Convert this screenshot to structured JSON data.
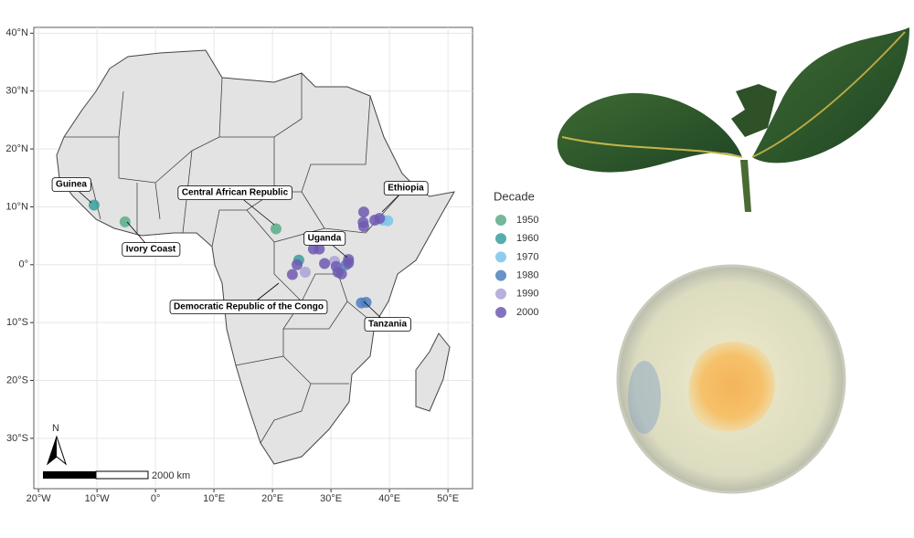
{
  "chart_data": {
    "type": "scatter",
    "legend_title": "Decade",
    "xlim": [
      -20.8,
      54.2
    ],
    "ylim": [
      -38.7,
      41
    ],
    "xticks": [
      {
        "value": -20,
        "label": "20°W"
      },
      {
        "value": -10,
        "label": "10°W"
      },
      {
        "value": 0,
        "label": "0°"
      },
      {
        "value": 10,
        "label": "10°E"
      },
      {
        "value": 20,
        "label": "20°E"
      },
      {
        "value": 30,
        "label": "30°E"
      },
      {
        "value": 40,
        "label": "40°E"
      },
      {
        "value": 50,
        "label": "50°E"
      }
    ],
    "yticks": [
      {
        "value": 40,
        "label": "40°N"
      },
      {
        "value": 30,
        "label": "30°N"
      },
      {
        "value": 20,
        "label": "20°N"
      },
      {
        "value": 10,
        "label": "10°N"
      },
      {
        "value": 0,
        "label": "0°"
      },
      {
        "value": -10,
        "label": "10°S"
      },
      {
        "value": -20,
        "label": "20°S"
      },
      {
        "value": -30,
        "label": "30°S"
      }
    ],
    "grid": true,
    "series": [
      {
        "name": "1950",
        "color": "#5aab8a",
        "x": [
          -5.2,
          20.6
        ],
        "y": [
          7.4,
          6.2
        ]
      },
      {
        "name": "1960",
        "color": "#3c9d9d",
        "x": [
          -10.5,
          24.5
        ],
        "y": [
          10.3,
          0.8
        ]
      },
      {
        "name": "1970",
        "color": "#7ec3ea",
        "x": [
          39.7,
          38.8
        ],
        "y": [
          7.6,
          7.7
        ]
      },
      {
        "name": "1980",
        "color": "#4f7fc0",
        "x": [
          32.6,
          35.2,
          36.0
        ],
        "y": [
          0.0,
          -6.6,
          -6.5
        ]
      },
      {
        "name": "1990",
        "color": "#a9a3d6",
        "x": [
          25.6,
          30.6
        ],
        "y": [
          -1.3,
          0.6
        ]
      },
      {
        "name": "2000",
        "color": "#6f5bb0",
        "x": [
          35.6,
          35.5,
          35.6,
          37.5,
          38.3,
          27.0,
          28.0,
          24.2,
          23.4,
          28.9,
          30.9,
          31.2,
          31.8,
          33.0,
          33.0
        ],
        "y": [
          9.1,
          7.3,
          6.6,
          7.7,
          8.0,
          2.7,
          2.7,
          0.0,
          -1.7,
          0.2,
          -0.3,
          -1.3,
          -1.6,
          0.9,
          0.3
        ]
      }
    ],
    "annotations": [
      "Guinea",
      "Ivory Coast",
      "Central African Republic",
      "Ethiopia",
      "Uganda",
      "Democratic Republic of the Congo",
      "Tanzania"
    ],
    "north_label": "N",
    "scale_bar_label": "2000 km"
  }
}
